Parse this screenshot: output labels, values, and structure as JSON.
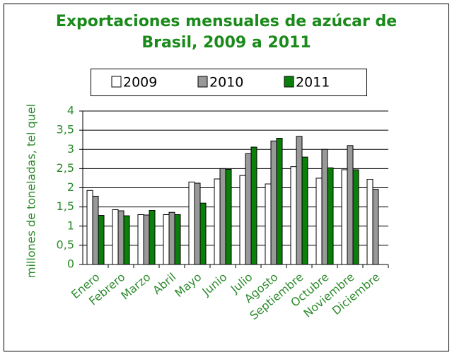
{
  "chart_data": {
    "type": "bar",
    "title": "Exportaciones mensuales de azúcar de Brasil, 2009 a 2011",
    "y_label": "millones de toneladas, tel quel",
    "categories": [
      "Enero",
      "Febrero",
      "Marzo",
      "Abril",
      "Mayo",
      "Junio",
      "Julio",
      "Agosto",
      "Septiembre",
      "Octubre",
      "Noviembre",
      "Diciembre"
    ],
    "series": [
      {
        "name": "2009",
        "color": "#ffffff",
        "values": [
          1.93,
          1.43,
          1.3,
          1.3,
          2.15,
          2.23,
          2.32,
          2.1,
          2.55,
          2.25,
          2.47,
          2.22
        ]
      },
      {
        "name": "2010",
        "color": "#999999",
        "values": [
          1.78,
          1.4,
          1.29,
          1.36,
          2.12,
          2.5,
          2.89,
          3.22,
          3.34,
          3.0,
          3.1,
          1.96
        ]
      },
      {
        "name": "2011",
        "color": "#0a800a",
        "values": [
          1.28,
          1.27,
          1.41,
          1.3,
          1.6,
          2.48,
          3.06,
          3.29,
          2.8,
          2.52,
          2.47,
          null
        ]
      }
    ],
    "ylim": [
      0,
      4
    ],
    "yticks": [
      0,
      {
        "value": 0.5,
        "label": "0,5"
      },
      1,
      {
        "value": 1.5,
        "label": "1,5"
      },
      2,
      {
        "value": 2.5,
        "label": "2,5"
      },
      3,
      {
        "value": 3.5,
        "label": "3,5"
      },
      4
    ],
    "grid": true,
    "legend": "top"
  }
}
